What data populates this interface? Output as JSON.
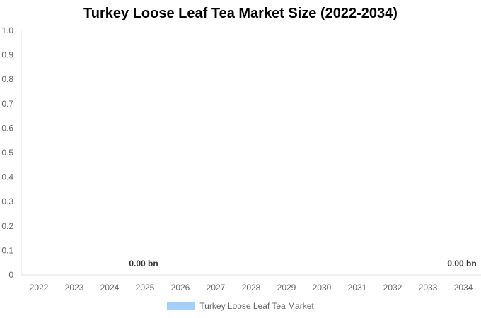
{
  "chart_data": {
    "type": "bar",
    "title": "Turkey Loose Leaf Tea Market Size (2022-2034)",
    "categories": [
      "2022",
      "2023",
      "2024",
      "2025",
      "2026",
      "2027",
      "2028",
      "2029",
      "2030",
      "2031",
      "2032",
      "2033",
      "2034"
    ],
    "series": [
      {
        "name": "Turkey Loose Leaf Tea Market",
        "values": [
          0,
          0,
          0,
          0,
          0,
          0,
          0,
          0,
          0,
          0,
          0,
          0,
          0
        ],
        "color": "#a3cffa"
      }
    ],
    "data_labels": [
      {
        "category": "2025",
        "text": "0.00 bn"
      },
      {
        "category": "2034",
        "text": "0.00 bn"
      }
    ],
    "yticks": [
      "0",
      "0.1",
      "0.2",
      "0.3",
      "0.4",
      "0.5",
      "0.6",
      "0.7",
      "0.8",
      "0.9",
      "1.0"
    ],
    "ylim": [
      0,
      1
    ],
    "grid": false,
    "legend": "bottom"
  }
}
